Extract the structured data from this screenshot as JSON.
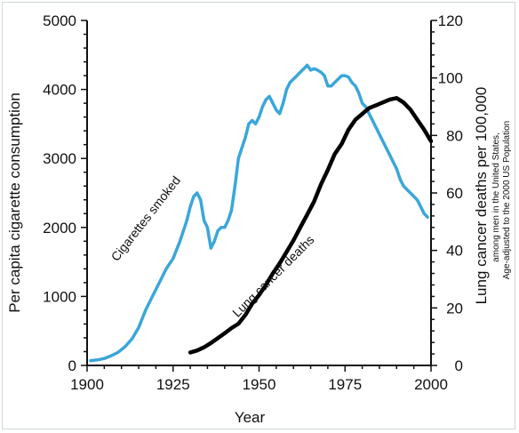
{
  "chart_data": {
    "type": "line",
    "title": "",
    "xlabel": "Year",
    "ylabel_left": "Per capita cigarette consumption",
    "ylabel_right": "Lung cancer deaths per 100,000",
    "ylabel_right_note_1": "among men in the United States,",
    "ylabel_right_note_2": "Age-adjusted to the 2000 US Population",
    "xlim": [
      1900,
      2000
    ],
    "ylim_left": [
      0,
      5000
    ],
    "ylim_right": [
      0,
      120
    ],
    "x_ticks": [
      "1900",
      "1925",
      "1950",
      "1975",
      "2000"
    ],
    "y_ticks_left": [
      "0",
      "1000",
      "2000",
      "3000",
      "4000",
      "5000"
    ],
    "y_ticks_right": [
      "0",
      "20",
      "40",
      "60",
      "80",
      "100",
      "120"
    ],
    "grid": false,
    "series": [
      {
        "name": "Cigarettes smoked",
        "axis": "left",
        "color": "#3aa6d9",
        "x": [
          1901,
          1903,
          1905,
          1907,
          1909,
          1911,
          1913,
          1915,
          1917,
          1919,
          1921,
          1923,
          1925,
          1927,
          1929,
          1930,
          1931,
          1932,
          1933,
          1934,
          1935,
          1936,
          1937,
          1938,
          1939,
          1940,
          1941,
          1942,
          1943,
          1944,
          1945,
          1946,
          1947,
          1948,
          1949,
          1950,
          1951,
          1952,
          1953,
          1954,
          1955,
          1956,
          1957,
          1958,
          1959,
          1960,
          1961,
          1962,
          1963,
          1964,
          1965,
          1966,
          1967,
          1968,
          1969,
          1970,
          1971,
          1972,
          1973,
          1974,
          1975,
          1976,
          1977,
          1978,
          1979,
          1980,
          1981,
          1982,
          1983,
          1984,
          1985,
          1986,
          1987,
          1988,
          1989,
          1990,
          1991,
          1992,
          1993,
          1994,
          1995,
          1996,
          1997,
          1998,
          1999
        ],
        "values": [
          70,
          80,
          100,
          140,
          190,
          270,
          380,
          550,
          800,
          1000,
          1200,
          1400,
          1550,
          1800,
          2100,
          2300,
          2450,
          2500,
          2400,
          2100,
          2000,
          1700,
          1800,
          1950,
          2000,
          2000,
          2100,
          2250,
          2600,
          3000,
          3150,
          3300,
          3500,
          3550,
          3500,
          3600,
          3750,
          3850,
          3900,
          3800,
          3700,
          3650,
          3800,
          4000,
          4100,
          4150,
          4200,
          4250,
          4300,
          4350,
          4280,
          4300,
          4280,
          4250,
          4200,
          4050,
          4050,
          4100,
          4150,
          4200,
          4200,
          4180,
          4100,
          4050,
          3950,
          3800,
          3750,
          3650,
          3550,
          3450,
          3350,
          3250,
          3150,
          3050,
          2950,
          2850,
          2700,
          2600,
          2550,
          2500,
          2450,
          2400,
          2300,
          2200,
          2150
        ]
      },
      {
        "name": "Lung cancer deaths",
        "axis": "right",
        "color": "#000000",
        "x": [
          1930,
          1932,
          1934,
          1936,
          1938,
          1940,
          1942,
          1944,
          1946,
          1948,
          1950,
          1952,
          1954,
          1956,
          1958,
          1960,
          1962,
          1964,
          1966,
          1968,
          1970,
          1972,
          1974,
          1976,
          1978,
          1980,
          1982,
          1984,
          1986,
          1988,
          1990,
          1992,
          1994,
          1996,
          1998,
          2000
        ],
        "values": [
          4.5,
          5.2,
          6.3,
          7.8,
          9.5,
          11.2,
          13.0,
          14.5,
          17.5,
          21.5,
          24.5,
          28.0,
          32.0,
          35.5,
          39.5,
          43.5,
          48.0,
          52.5,
          57.0,
          63.0,
          68.0,
          73.5,
          77.0,
          82.0,
          85.5,
          87.5,
          89.5,
          90.5,
          91.5,
          92.5,
          93.0,
          91.5,
          89.0,
          85.5,
          82.0,
          78.0
        ]
      }
    ],
    "annotations": [
      {
        "text": "Cigarettes smoked",
        "x": 1918,
        "y": 2090,
        "axis": "left",
        "angle": -52
      },
      {
        "text": "Lung cancer deaths",
        "x": 1955,
        "y": 30,
        "axis": "right",
        "angle": -45
      }
    ]
  }
}
